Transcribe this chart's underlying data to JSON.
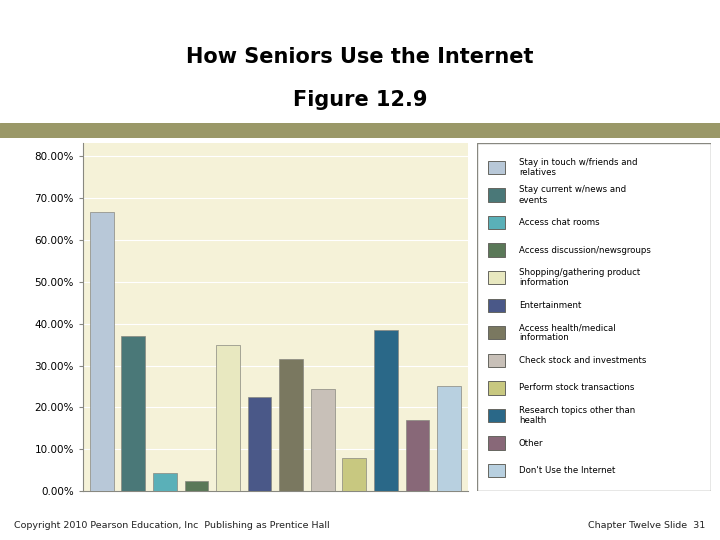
{
  "title_line1": "How Seniors Use the Internet",
  "title_line2": "Figure 12.9",
  "values": [
    66.5,
    37.0,
    4.5,
    2.5,
    35.0,
    22.5,
    31.5,
    24.5,
    8.0,
    38.5,
    17.0,
    25.0
  ],
  "bar_colors": [
    "#b8c8d8",
    "#4a7878",
    "#5ab0b8",
    "#5a7858",
    "#e8e8c0",
    "#4a5888",
    "#7a7860",
    "#c8c0b8",
    "#c8c880",
    "#2a6888",
    "#886878",
    "#b8d0e0"
  ],
  "legend_labels": [
    "Stay in touch w/friends and\nrelatives",
    "Stay current w/news and\nevents",
    "Access chat rooms",
    "Access discussion/newsgroups",
    "Shopping/gathering product\ninformation",
    "Entertainment",
    "Access health/medical\ninformation",
    "Check stock and investments",
    "Perform stock transactions",
    "Research topics other than\nhealth",
    "Other",
    "Don't Use the Internet"
  ],
  "legend_colors": [
    "#b8c8d8",
    "#4a7878",
    "#5ab0b8",
    "#5a7858",
    "#e8e8c0",
    "#4a5888",
    "#7a7860",
    "#c8c0b8",
    "#c8c880",
    "#2a6888",
    "#886878",
    "#b8d0e0"
  ],
  "yticks": [
    0.0,
    10.0,
    20.0,
    30.0,
    40.0,
    50.0,
    60.0,
    70.0,
    80.0
  ],
  "ylim": [
    0,
    83
  ],
  "plot_bg": "#f5f2d8",
  "header_bar_color": "#9a9868",
  "footer_text_left": "Copyright 2010 Pearson Education, Inc  Publishing as Prentice Hall",
  "footer_text_right": "Chapter Twelve Slide  31"
}
